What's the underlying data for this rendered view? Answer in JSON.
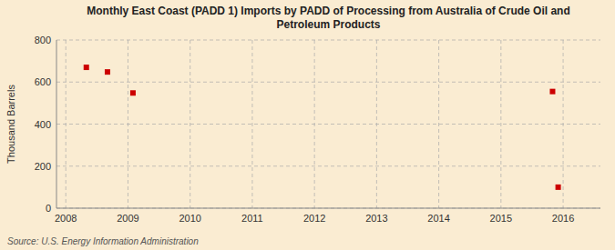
{
  "chart_data": {
    "type": "scatter",
    "title": "Monthly East Coast (PADD 1) Imports by PADD of Processing from Australia of Crude Oil and\nPetroleum Products",
    "ylabel": "Thousand Barrels",
    "annotations": [
      "Source: U.S. Energy Information Administration"
    ],
    "x": [
      2008.33,
      2008.67,
      2009.08,
      2015.83,
      2015.92
    ],
    "values": [
      670,
      648,
      548,
      555,
      100
    ],
    "color": "#cc0000",
    "marker": "square",
    "xlim": [
      2007.85,
      2016.6
    ],
    "ylim": [
      0,
      800
    ],
    "xticks": [
      2008,
      2009,
      2010,
      2011,
      2012,
      2013,
      2014,
      2015,
      2016
    ],
    "yticks": [
      0,
      200,
      400,
      600,
      800
    ],
    "grid": true
  }
}
